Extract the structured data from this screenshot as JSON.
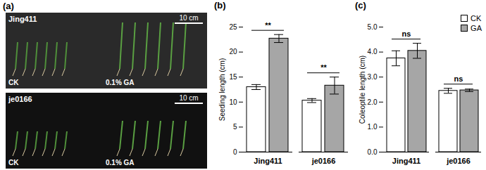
{
  "photo_panel": {
    "title": "(a)",
    "images": [
      {
        "genotype": "Jing411",
        "control": "CK",
        "treatment": "0.1% GA",
        "scale_bar": "10 cm"
      },
      {
        "genotype": "je0166",
        "control": "CK",
        "treatment": "0.1% GA",
        "scale_bar": "10 cm"
      }
    ]
  },
  "chart_data": [
    {
      "type": "bar",
      "title": "(b)",
      "y_label": "Seeding length (cm)",
      "categories": [
        "Jing411",
        "je0166"
      ],
      "series": [
        {
          "name": "CK",
          "color": "#ffffff",
          "values": [
            13.0,
            10.3
          ],
          "errors": [
            0.5,
            0.4
          ]
        },
        {
          "name": "GA",
          "color": "#a6a6a6",
          "values": [
            22.7,
            13.3
          ],
          "errors": [
            0.8,
            1.7
          ]
        }
      ],
      "ylim": [
        0,
        25
      ],
      "yticks": [
        0,
        5,
        10,
        15,
        20,
        25
      ],
      "annotations": [
        {
          "category": "Jing411",
          "text": "**"
        },
        {
          "category": "je0166",
          "text": "**"
        }
      ]
    },
    {
      "type": "bar",
      "title": "(c)",
      "y_label": "Coleoptile length (cm)",
      "categories": [
        "Jing411",
        "je0166"
      ],
      "series": [
        {
          "name": "CK",
          "color": "#ffffff",
          "values": [
            3.75,
            2.45
          ],
          "errors": [
            0.3,
            0.1
          ]
        },
        {
          "name": "GA",
          "color": "#a6a6a6",
          "values": [
            4.05,
            2.47
          ],
          "errors": [
            0.3,
            0.05
          ]
        }
      ],
      "ylim": [
        0,
        5
      ],
      "yticks": [
        0,
        1,
        2,
        3,
        4,
        5
      ],
      "legend": "top-right",
      "annotations": [
        {
          "category": "Jing411",
          "text": "ns"
        },
        {
          "category": "je0166",
          "text": "ns"
        }
      ]
    }
  ]
}
